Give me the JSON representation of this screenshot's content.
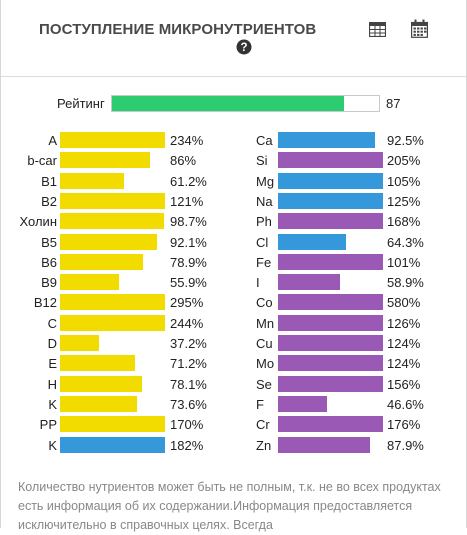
{
  "header": {
    "title": "ПОСТУПЛЕНИЕ МИКРОНУТРИЕНТОВ",
    "icons": [
      "table-icon",
      "calendar-icon",
      "help-icon"
    ]
  },
  "rating": {
    "label": "Рейтинг",
    "value": "87",
    "fill_fraction": 0.87,
    "color": "#2ecc71"
  },
  "colors": {
    "yellow": "#f2dc00",
    "blue": "#3498db",
    "purple": "#9b59b6"
  },
  "vitamins": [
    {
      "name": "A",
      "value": "234%",
      "pct": 234,
      "color": "yellow"
    },
    {
      "name": "b-car",
      "value": "86%",
      "pct": 86,
      "color": "yellow"
    },
    {
      "name": "B1",
      "value": "61.2%",
      "pct": 61.2,
      "color": "yellow"
    },
    {
      "name": "B2",
      "value": "121%",
      "pct": 121,
      "color": "yellow"
    },
    {
      "name": "Холин",
      "value": "98.7%",
      "pct": 98.7,
      "color": "yellow"
    },
    {
      "name": "B5",
      "value": "92.1%",
      "pct": 92.1,
      "color": "yellow"
    },
    {
      "name": "B6",
      "value": "78.9%",
      "pct": 78.9,
      "color": "yellow"
    },
    {
      "name": "B9",
      "value": "55.9%",
      "pct": 55.9,
      "color": "yellow"
    },
    {
      "name": "B12",
      "value": "295%",
      "pct": 295,
      "color": "yellow"
    },
    {
      "name": "C",
      "value": "244%",
      "pct": 244,
      "color": "yellow"
    },
    {
      "name": "D",
      "value": "37.2%",
      "pct": 37.2,
      "color": "yellow"
    },
    {
      "name": "E",
      "value": "71.2%",
      "pct": 71.2,
      "color": "yellow"
    },
    {
      "name": "H",
      "value": "78.1%",
      "pct": 78.1,
      "color": "yellow"
    },
    {
      "name": "K",
      "value": "73.6%",
      "pct": 73.6,
      "color": "yellow"
    },
    {
      "name": "PP",
      "value": "170%",
      "pct": 170,
      "color": "yellow"
    },
    {
      "name": "K",
      "value": "182%",
      "pct": 182,
      "color": "blue"
    }
  ],
  "minerals": [
    {
      "name": "Ca",
      "value": "92.5%",
      "pct": 92.5,
      "color": "blue"
    },
    {
      "name": "Si",
      "value": "205%",
      "pct": 205,
      "color": "purple"
    },
    {
      "name": "Mg",
      "value": "105%",
      "pct": 105,
      "color": "blue"
    },
    {
      "name": "Na",
      "value": "125%",
      "pct": 125,
      "color": "blue"
    },
    {
      "name": "Ph",
      "value": "168%",
      "pct": 168,
      "color": "purple"
    },
    {
      "name": "Cl",
      "value": "64.3%",
      "pct": 64.3,
      "color": "blue"
    },
    {
      "name": "Fe",
      "value": "101%",
      "pct": 101,
      "color": "purple"
    },
    {
      "name": "I",
      "value": "58.9%",
      "pct": 58.9,
      "color": "purple"
    },
    {
      "name": "Co",
      "value": "580%",
      "pct": 580,
      "color": "purple"
    },
    {
      "name": "Mn",
      "value": "126%",
      "pct": 126,
      "color": "purple"
    },
    {
      "name": "Cu",
      "value": "124%",
      "pct": 124,
      "color": "purple"
    },
    {
      "name": "Mo",
      "value": "124%",
      "pct": 124,
      "color": "purple"
    },
    {
      "name": "Se",
      "value": "156%",
      "pct": 156,
      "color": "purple"
    },
    {
      "name": "F",
      "value": "46.6%",
      "pct": 46.6,
      "color": "purple"
    },
    {
      "name": "Cr",
      "value": "176%",
      "pct": 176,
      "color": "purple"
    },
    {
      "name": "Zn",
      "value": "87.9%",
      "pct": 87.9,
      "color": "purple"
    }
  ],
  "footer": {
    "text": "Количество нутриентов может быть не полным, т.к. не во всех продуктах есть информация об их содержании.Информация предоставляется исключительно в справочных целях. Всегда"
  }
}
